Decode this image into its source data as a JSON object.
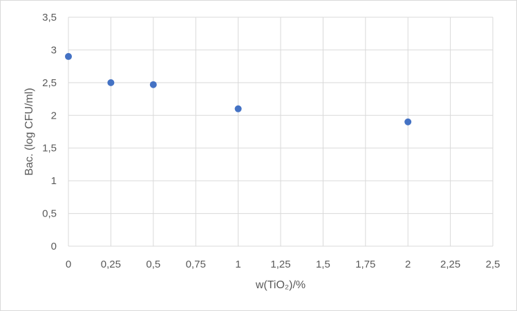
{
  "chart_data": {
    "type": "scatter",
    "title": "",
    "xlabel": "w(TiO₂)/%",
    "ylabel": "Bac. (log CFU/ml)",
    "xlim": [
      0,
      2.5
    ],
    "ylim": [
      0,
      3.5
    ],
    "x_ticks": [
      "0",
      "0,25",
      "0,5",
      "0,75",
      "1",
      "1,25",
      "1,5",
      "1,75",
      "2",
      "2,25",
      "2,5"
    ],
    "y_ticks": [
      "0",
      "0,5",
      "1",
      "1,5",
      "2",
      "2,5",
      "3",
      "3,5"
    ],
    "grid": true,
    "legend": "none",
    "colors": {
      "marker": "#4472c4",
      "grid": "#d9d9d9",
      "text": "#595959"
    },
    "series": [
      {
        "x": [
          0,
          0.25,
          0.5,
          1,
          2
        ],
        "y": [
          2.9,
          2.5,
          2.47,
          2.1,
          1.9
        ]
      }
    ]
  }
}
